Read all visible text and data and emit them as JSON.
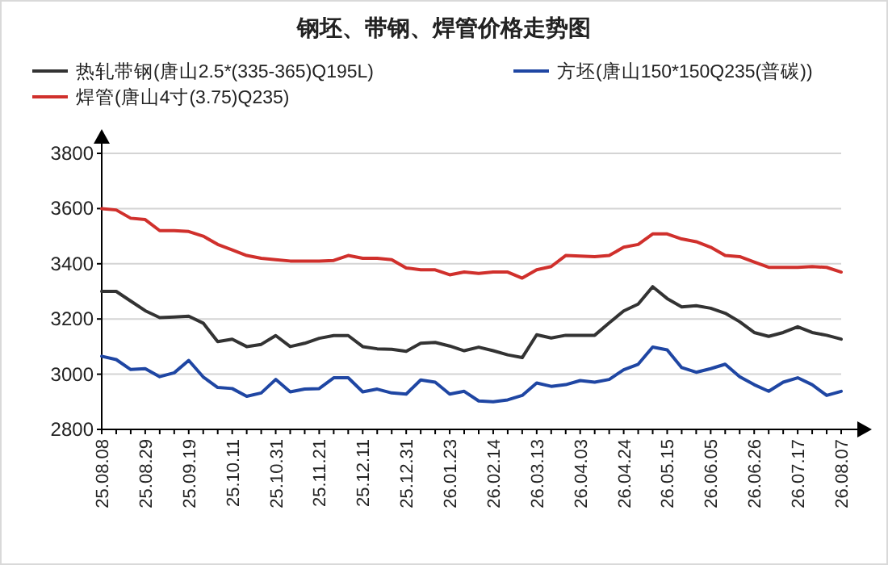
{
  "chart_data": {
    "type": "line",
    "title": "钢坯、带钢、焊管价格走势图",
    "categories": [
      "25.08.08",
      null,
      null,
      "25.08.29",
      null,
      null,
      "25.09.19",
      null,
      null,
      "25.10.11",
      null,
      null,
      "25.10.31",
      null,
      null,
      "25.11.21",
      null,
      null,
      "25.12.11",
      null,
      null,
      "25.12.31",
      null,
      null,
      "26.01.23",
      null,
      null,
      "26.02.14",
      null,
      null,
      "26.03.13",
      null,
      null,
      "26.04.03",
      null,
      null,
      "26.04.24",
      null,
      null,
      "26.05.15",
      null,
      null,
      "26.06.05",
      null,
      null,
      "26.06.26",
      null,
      null,
      "26.07.17",
      null,
      null,
      "26.08.07"
    ],
    "series": [
      {
        "name": "热轧带钢(唐山2.5*(335-365)Q195L)",
        "color": "#333333",
        "values": [
          3300,
          3300,
          3265,
          3230,
          3205,
          3207,
          3210,
          3185,
          3118,
          3127,
          3100,
          3108,
          3140,
          3100,
          3112,
          3130,
          3140,
          3140,
          3100,
          3092,
          3090,
          3083,
          3112,
          3115,
          3102,
          3085,
          3098,
          3085,
          3070,
          3060,
          3143,
          3131,
          3141,
          3141,
          3141,
          3186,
          3229,
          3254,
          3317,
          3274,
          3244,
          3248,
          3239,
          3221,
          3190,
          3151,
          3137,
          3151,
          3172,
          3151,
          3141,
          3127
        ]
      },
      {
        "name": "方坯(唐山150*150Q235(普碳))",
        "color": "#1f46a3",
        "values": [
          3065,
          3053,
          3017,
          3020,
          2991,
          3005,
          3050,
          2990,
          2952,
          2948,
          2920,
          2932,
          2981,
          2936,
          2946,
          2948,
          2987,
          2987,
          2936,
          2946,
          2932,
          2928,
          2979,
          2971,
          2928,
          2938,
          2903,
          2900,
          2907,
          2923,
          2968,
          2956,
          2962,
          2977,
          2971,
          2981,
          3016,
          3036,
          3098,
          3088,
          3024,
          3007,
          3020,
          3036,
          2991,
          2962,
          2938,
          2971,
          2987,
          2962,
          2923,
          2938
        ]
      },
      {
        "name": "焊管(唐山4寸(3.75)Q235)",
        "color": "#d0302c",
        "values": [
          3600,
          3595,
          3565,
          3560,
          3520,
          3520,
          3517,
          3500,
          3470,
          3450,
          3430,
          3420,
          3415,
          3410,
          3410,
          3410,
          3412,
          3430,
          3420,
          3420,
          3415,
          3385,
          3378,
          3378,
          3360,
          3370,
          3365,
          3370,
          3370,
          3348,
          3378,
          3390,
          3430,
          3428,
          3426,
          3430,
          3460,
          3470,
          3508,
          3508,
          3490,
          3480,
          3460,
          3430,
          3426,
          3406,
          3387,
          3387,
          3387,
          3390,
          3387,
          3370
        ]
      }
    ],
    "ylim": [
      2800,
      3800
    ],
    "yticks": [
      2800,
      3000,
      3200,
      3400,
      3600,
      3800
    ],
    "grid": "y",
    "legend": "top",
    "marker": "none",
    "line_style": "solid"
  }
}
